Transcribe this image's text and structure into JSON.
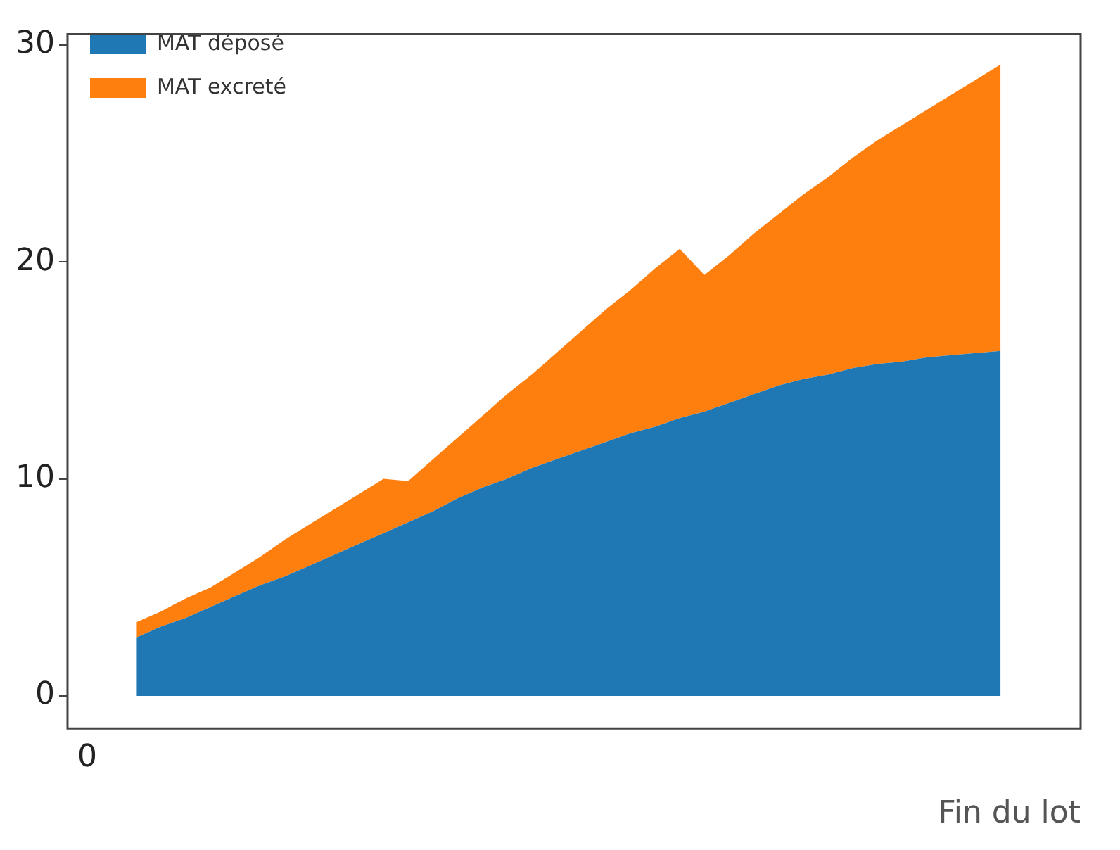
{
  "chart_data": {
    "type": "area",
    "stacked": true,
    "xlabel": "Fin du lot",
    "annotations": [
      "0"
    ],
    "categories": [
      null,
      null,
      null,
      null,
      null,
      null,
      null,
      null,
      null,
      null,
      null,
      null,
      null,
      null,
      null,
      null,
      null,
      null,
      null,
      null,
      null,
      null,
      null,
      null,
      null,
      null,
      null,
      null,
      null,
      null,
      null,
      null,
      null,
      null,
      null,
      null
    ],
    "series": [
      {
        "name": "MAT déposé",
        "color": "#1f77b4",
        "values": [
          2.7,
          3.2,
          3.6,
          4.1,
          4.6,
          5.1,
          5.5,
          6.0,
          6.5,
          7.0,
          7.5,
          8.0,
          8.5,
          9.1,
          9.6,
          10.0,
          10.5,
          10.9,
          11.3,
          11.7,
          12.1,
          12.4,
          12.8,
          13.1,
          13.5,
          13.9,
          14.3,
          14.6,
          14.8,
          15.1,
          15.3,
          15.4,
          15.6,
          15.7,
          15.8,
          15.9
        ]
      },
      {
        "name": "MAT excreté",
        "color": "#ff7f0e",
        "values": [
          0.7,
          0.7,
          0.9,
          0.9,
          1.1,
          1.3,
          1.7,
          1.9,
          2.1,
          2.3,
          2.5,
          1.9,
          2.4,
          2.8,
          3.3,
          3.9,
          4.3,
          4.9,
          5.5,
          6.1,
          6.6,
          7.3,
          7.8,
          6.3,
          6.8,
          7.4,
          7.9,
          8.5,
          9.1,
          9.7,
          10.3,
          10.9,
          11.4,
          12.0,
          12.6,
          13.2
        ]
      }
    ],
    "ylim": [
      -1.5,
      30.5
    ],
    "yticks": [
      0,
      10,
      20,
      30
    ],
    "grid": false,
    "legend": "top left"
  }
}
